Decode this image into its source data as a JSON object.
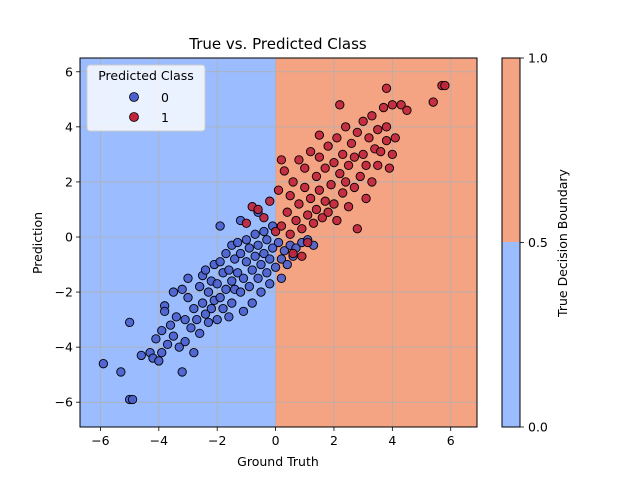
{
  "chart_data": {
    "type": "scatter",
    "title": "True vs. Predicted Class",
    "xlabel": "Ground Truth",
    "ylabel": "Prediction",
    "xlim": [
      -6.7,
      6.9
    ],
    "ylim": [
      -6.9,
      6.5
    ],
    "xticks": [
      -6,
      -4,
      -2,
      0,
      2,
      4,
      6
    ],
    "yticks": [
      -6,
      -4,
      -2,
      0,
      2,
      4,
      6
    ],
    "grid": true,
    "decision_boundary_x": 0,
    "background_regions": [
      {
        "x_range": [
          -6.7,
          0
        ],
        "color": "#9bbcff"
      },
      {
        "x_range": [
          0,
          6.9
        ],
        "color": "#f4a383"
      }
    ],
    "series": [
      {
        "name": "0",
        "color": "#4b5fce",
        "points": [
          [
            -5.9,
            -4.6
          ],
          [
            -5.3,
            -4.9
          ],
          [
            -5.0,
            -3.1
          ],
          [
            -5.0,
            -5.9
          ],
          [
            -4.9,
            -5.9
          ],
          [
            -4.6,
            -4.3
          ],
          [
            -4.3,
            -4.2
          ],
          [
            -4.2,
            -4.4
          ],
          [
            -4.1,
            -3.7
          ],
          [
            -4.0,
            -4.5
          ],
          [
            -3.9,
            -3.4
          ],
          [
            -3.9,
            -4.2
          ],
          [
            -3.8,
            -2.5
          ],
          [
            -3.8,
            -2.7
          ],
          [
            -3.7,
            -3.9
          ],
          [
            -3.6,
            -3.2
          ],
          [
            -3.5,
            -3.6
          ],
          [
            -3.5,
            -2.0
          ],
          [
            -3.4,
            -2.9
          ],
          [
            -3.3,
            -4.0
          ],
          [
            -3.2,
            -4.9
          ],
          [
            -3.2,
            -1.9
          ],
          [
            -3.1,
            -3.0
          ],
          [
            -3.1,
            -3.8
          ],
          [
            -3.0,
            -1.5
          ],
          [
            -3.0,
            -2.2
          ],
          [
            -2.9,
            -3.3
          ],
          [
            -2.8,
            -4.2
          ],
          [
            -2.8,
            -2.6
          ],
          [
            -2.7,
            -3.0
          ],
          [
            -2.6,
            -1.8
          ],
          [
            -2.6,
            -3.5
          ],
          [
            -2.5,
            -2.4
          ],
          [
            -2.5,
            -1.4
          ],
          [
            -2.4,
            -1.2
          ],
          [
            -2.4,
            -2.8
          ],
          [
            -2.3,
            -3.1
          ],
          [
            -2.3,
            -2.0
          ],
          [
            -2.2,
            -1.6
          ],
          [
            -2.2,
            -2.6
          ],
          [
            -2.1,
            -1.0
          ],
          [
            -2.1,
            -2.3
          ],
          [
            -2.0,
            -3.0
          ],
          [
            -2.0,
            -1.7
          ],
          [
            -1.9,
            -0.9
          ],
          [
            -1.9,
            -2.2
          ],
          [
            -1.8,
            -1.3
          ],
          [
            -1.8,
            -2.6
          ],
          [
            -1.7,
            -0.6
          ],
          [
            -1.7,
            -1.9
          ],
          [
            -1.6,
            -1.2
          ],
          [
            -1.6,
            -2.9
          ],
          [
            -1.5,
            -0.3
          ],
          [
            -1.5,
            -1.6
          ],
          [
            -1.5,
            -2.4
          ],
          [
            -1.4,
            -0.8
          ],
          [
            -1.4,
            -1.9
          ],
          [
            -1.3,
            -0.2
          ],
          [
            -1.3,
            -1.3
          ],
          [
            -1.2,
            -2.0
          ],
          [
            -1.2,
            -0.6
          ],
          [
            -1.1,
            -1.5
          ],
          [
            -1.1,
            -2.7
          ],
          [
            -1.0,
            -0.1
          ],
          [
            -1.0,
            -0.9
          ],
          [
            -0.9,
            -1.8
          ],
          [
            -0.9,
            -0.4
          ],
          [
            -0.8,
            -1.2
          ],
          [
            -0.8,
            -2.4
          ],
          [
            -0.7,
            0.1
          ],
          [
            -0.7,
            -0.7
          ],
          [
            -0.6,
            -1.5
          ],
          [
            -0.6,
            -0.3
          ],
          [
            -0.5,
            -1.0
          ],
          [
            -0.5,
            -2.0
          ],
          [
            -0.4,
            0.2
          ],
          [
            -0.4,
            -0.6
          ],
          [
            -0.3,
            -1.3
          ],
          [
            -0.3,
            -0.1
          ],
          [
            -0.2,
            -0.8
          ],
          [
            -0.2,
            -1.7
          ],
          [
            -0.1,
            0.4
          ],
          [
            -0.1,
            -0.4
          ],
          [
            0.0,
            -1.1
          ],
          [
            0.1,
            -0.2
          ],
          [
            0.2,
            -0.8
          ],
          [
            0.3,
            -0.5
          ],
          [
            0.4,
            -1.0
          ],
          [
            0.5,
            -0.3
          ],
          [
            0.6,
            -0.7
          ],
          [
            0.7,
            -0.4
          ],
          [
            0.9,
            -0.2
          ],
          [
            1.1,
            -0.1
          ],
          [
            1.3,
            -0.3
          ],
          [
            -1.9,
            0.4
          ],
          [
            -1.2,
            0.6
          ],
          [
            -0.6,
            0.9
          ],
          [
            0.2,
            -1.5
          ]
        ]
      },
      {
        "name": "1",
        "color": "#c0253c",
        "points": [
          [
            -1.0,
            0.5
          ],
          [
            -0.8,
            1.1
          ],
          [
            -0.6,
            1.0
          ],
          [
            -0.4,
            0.7
          ],
          [
            -0.2,
            1.3
          ],
          [
            0.0,
            0.2
          ],
          [
            0.1,
            1.7
          ],
          [
            0.2,
            0.4
          ],
          [
            0.3,
            2.4
          ],
          [
            0.4,
            0.9
          ],
          [
            0.5,
            0.1
          ],
          [
            0.5,
            1.5
          ],
          [
            0.6,
            2.0
          ],
          [
            0.7,
            0.6
          ],
          [
            0.8,
            1.2
          ],
          [
            0.8,
            2.8
          ],
          [
            0.9,
            0.3
          ],
          [
            1.0,
            1.8
          ],
          [
            1.0,
            2.5
          ],
          [
            1.1,
            0.8
          ],
          [
            1.2,
            1.4
          ],
          [
            1.2,
            3.1
          ],
          [
            1.3,
            0.5
          ],
          [
            1.4,
            2.2
          ],
          [
            1.4,
            1.0
          ],
          [
            1.5,
            1.7
          ],
          [
            1.5,
            2.9
          ],
          [
            1.6,
            0.7
          ],
          [
            1.7,
            1.3
          ],
          [
            1.7,
            2.5
          ],
          [
            1.8,
            3.3
          ],
          [
            1.8,
            0.9
          ],
          [
            1.9,
            1.9
          ],
          [
            2.0,
            2.7
          ],
          [
            2.0,
            1.2
          ],
          [
            2.1,
            3.6
          ],
          [
            2.1,
            0.6
          ],
          [
            2.2,
            2.3
          ],
          [
            2.3,
            1.6
          ],
          [
            2.3,
            3.0
          ],
          [
            2.4,
            2.0
          ],
          [
            2.4,
            4.0
          ],
          [
            2.5,
            1.1
          ],
          [
            2.5,
            2.6
          ],
          [
            2.6,
            3.4
          ],
          [
            2.7,
            1.8
          ],
          [
            2.7,
            2.9
          ],
          [
            2.8,
            0.3
          ],
          [
            2.8,
            3.8
          ],
          [
            2.9,
            2.2
          ],
          [
            3.0,
            3.0
          ],
          [
            3.0,
            4.2
          ],
          [
            3.1,
            1.4
          ],
          [
            3.1,
            2.6
          ],
          [
            3.2,
            3.6
          ],
          [
            3.3,
            2.0
          ],
          [
            3.3,
            4.4
          ],
          [
            3.4,
            3.2
          ],
          [
            3.5,
            2.6
          ],
          [
            3.5,
            3.9
          ],
          [
            3.6,
            3.1
          ],
          [
            3.7,
            4.7
          ],
          [
            3.8,
            3.5
          ],
          [
            3.8,
            4.0
          ],
          [
            3.9,
            2.5
          ],
          [
            4.0,
            4.8
          ],
          [
            4.0,
            3.0
          ],
          [
            4.1,
            3.6
          ],
          [
            4.3,
            4.8
          ],
          [
            4.5,
            4.6
          ],
          [
            5.4,
            4.9
          ],
          [
            5.7,
            5.5
          ],
          [
            5.8,
            5.5
          ],
          [
            3.8,
            5.4
          ],
          [
            0.6,
            -0.6
          ],
          [
            1.1,
            -0.2
          ],
          [
            0.9,
            -0.7
          ],
          [
            2.2,
            4.8
          ],
          [
            0.2,
            2.8
          ],
          [
            1.5,
            3.7
          ]
        ]
      }
    ],
    "legend": {
      "title": "Predicted Class",
      "placement": "top-left",
      "entries": [
        "0",
        "1"
      ]
    },
    "colorbar": {
      "label": "True Decision Boundary",
      "ticks": [
        "0.0",
        "0.5",
        "1.0"
      ],
      "tick_values": [
        0.0,
        0.5,
        1.0
      ],
      "colors": [
        "#9bbcff",
        "#f4a383"
      ]
    }
  }
}
